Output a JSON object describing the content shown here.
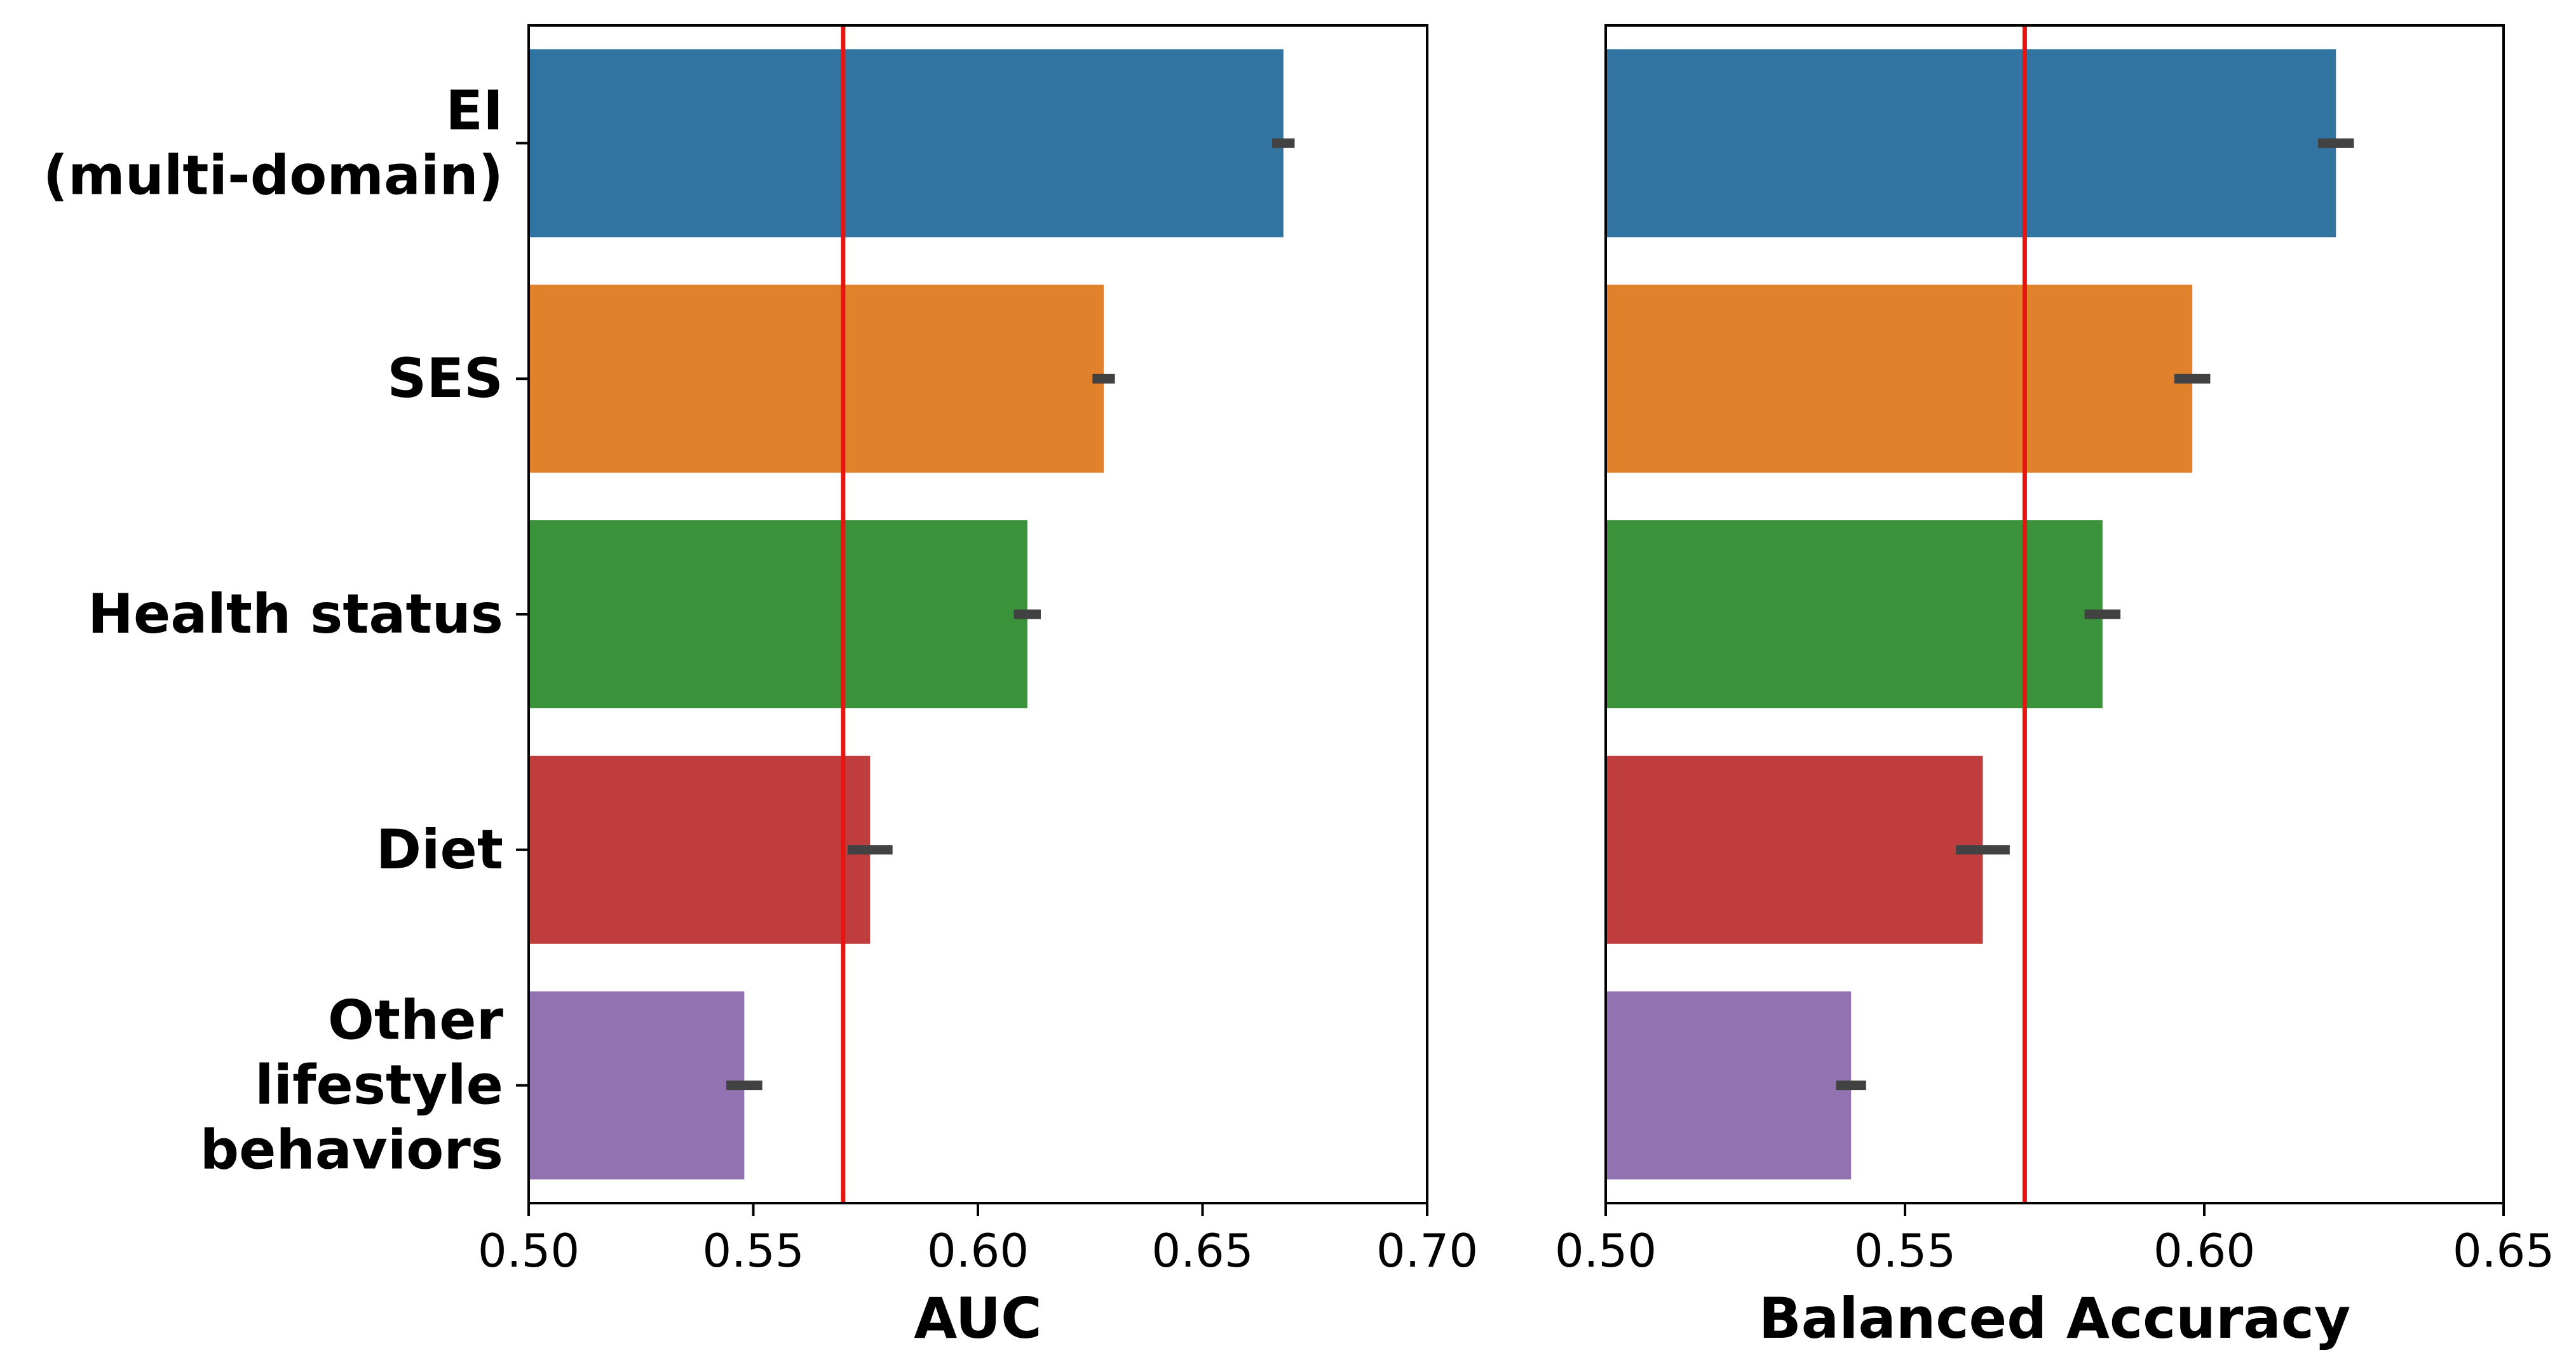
{
  "chart_data": [
    {
      "type": "bar",
      "orientation": "horizontal",
      "categories": [
        [
          "EI",
          "(multi-domain)"
        ],
        [
          "SES"
        ],
        [
          "Health status"
        ],
        [
          "Diet"
        ],
        [
          "Other",
          "lifestyle",
          "behaviors"
        ]
      ],
      "values": [
        0.668,
        0.628,
        0.611,
        0.576,
        0.548
      ],
      "errors": [
        0.0025,
        0.0025,
        0.003,
        0.005,
        0.004
      ],
      "colors": [
        "#3274a1",
        "#e1812c",
        "#3a923a",
        "#c03d3e",
        "#9372b2"
      ],
      "reference_line": 0.57,
      "reference_color": "#e8140f",
      "xlim": [
        0.5,
        0.7
      ],
      "xticks": [
        "0.50",
        "0.55",
        "0.60",
        "0.65",
        "0.70"
      ],
      "xlabel": "AUC",
      "show_category_labels": true
    },
    {
      "type": "bar",
      "orientation": "horizontal",
      "categories": [
        [
          "EI",
          "(multi-domain)"
        ],
        [
          "SES"
        ],
        [
          "Health status"
        ],
        [
          "Diet"
        ],
        [
          "Other",
          "lifestyle",
          "behaviors"
        ]
      ],
      "values": [
        0.622,
        0.598,
        0.583,
        0.563,
        0.541
      ],
      "errors": [
        0.003,
        0.003,
        0.003,
        0.0045,
        0.0025
      ],
      "colors": [
        "#3274a1",
        "#e1812c",
        "#3a923a",
        "#c03d3e",
        "#9372b2"
      ],
      "reference_line": 0.57,
      "reference_color": "#e8140f",
      "xlim": [
        0.5,
        0.65
      ],
      "xticks": [
        "0.50",
        "0.55",
        "0.60",
        "0.65"
      ],
      "xlabel": "Balanced Accuracy",
      "show_category_labels": false
    }
  ]
}
